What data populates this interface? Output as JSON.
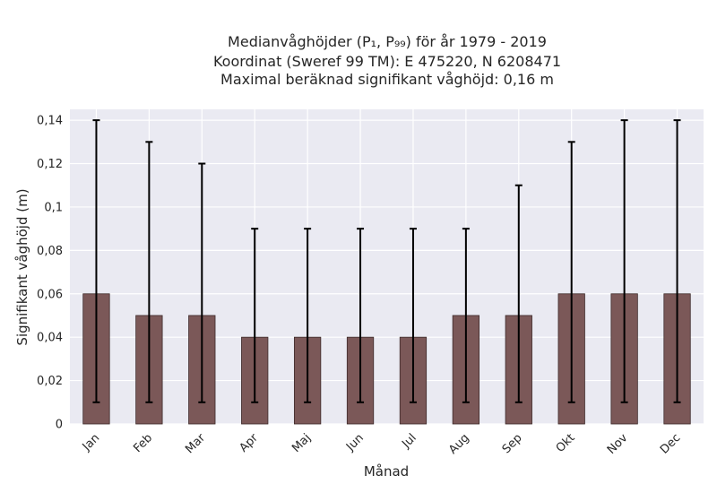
{
  "chart_data": {
    "type": "bar",
    "title_lines": [
      "Medianvåghöjder (P₁, P₉₉) för år 1979 - 2019",
      "Koordinat (Sweref 99 TM): E 475220, N 6208471",
      "Maximal beräknad signifikant våghöjd: 0,16 m"
    ],
    "xlabel": "Månad",
    "ylabel": "Signifikant våghöjd (m)",
    "categories": [
      "Jan",
      "Feb",
      "Mar",
      "Apr",
      "Maj",
      "Jun",
      "Jul",
      "Aug",
      "Sep",
      "Okt",
      "Nov",
      "Dec"
    ],
    "values": [
      0.06,
      0.05,
      0.05,
      0.04,
      0.04,
      0.04,
      0.04,
      0.05,
      0.05,
      0.06,
      0.06,
      0.06
    ],
    "error_low": [
      0.01,
      0.01,
      0.01,
      0.01,
      0.01,
      0.01,
      0.01,
      0.01,
      0.01,
      0.01,
      0.01,
      0.01
    ],
    "error_high": [
      0.14,
      0.13,
      0.12,
      0.09,
      0.09,
      0.09,
      0.09,
      0.09,
      0.11,
      0.13,
      0.14,
      0.14
    ],
    "ylim": [
      0,
      0.145
    ],
    "yticks": [
      0,
      0.02,
      0.04,
      0.06,
      0.08,
      0.1,
      0.12,
      0.14
    ],
    "ytick_labels": [
      "0",
      "0,02",
      "0,04",
      "0,06",
      "0,08",
      "0,1",
      "0,12",
      "0,14"
    ],
    "bar_color": "#7b5858",
    "errorbar_color": "#000000",
    "background_color": "#eaeaf2",
    "grid": true,
    "legend": "none"
  }
}
